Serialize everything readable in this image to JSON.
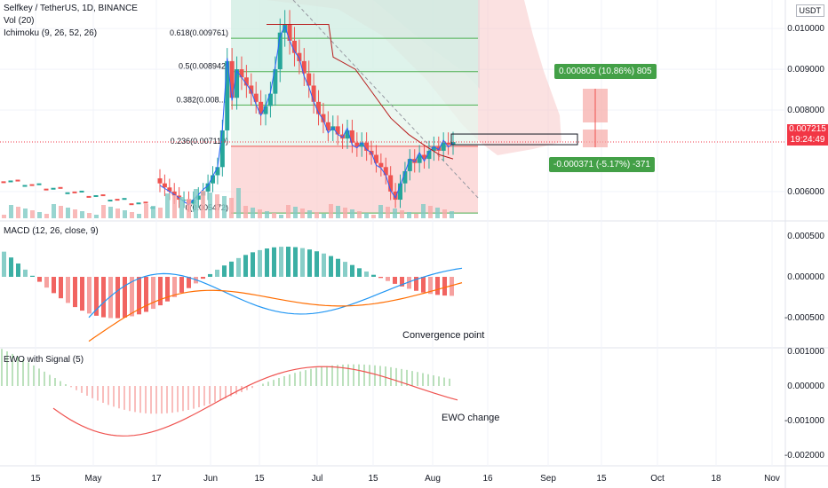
{
  "header": {
    "symbol": "Selfkey / TetherUS, 1D, BINANCE",
    "vol": "Vol (20)",
    "ichimoku": "Ichimoku (9, 26, 52, 26)",
    "macd": "MACD (12, 26, close, 9)",
    "ewo": "EWO with Signal (5)",
    "currency": "USDT"
  },
  "colors": {
    "up": "#26a69a",
    "down": "#ef5350",
    "price_line": "#f23645",
    "tenkan": "#2962ff",
    "kijun": "#b71c1c",
    "cloud": "#f8c9c9",
    "macd_line": "#2196f3",
    "signal_line": "#ff6d00",
    "ewo_pos": "#4caf50",
    "ewo_neg": "#ef5350",
    "long_target": "#43a047"
  },
  "price": {
    "current": "0.007215",
    "countdown": "19:24:49",
    "y_ticks": [
      "0.010000",
      "0.009000",
      "0.008000",
      "0.006000"
    ],
    "fib_levels": [
      {
        "label": "0.618(0.009761)",
        "value": 0.009761
      },
      {
        "label": "0.5(0.008942)",
        "value": 0.008942
      },
      {
        "label": "0.382(0.008...)",
        "value": 0.008123
      },
      {
        "label": "0.236(0.007110)",
        "value": 0.00711
      },
      {
        "label": "0(0.005472)",
        "value": 0.005472
      }
    ],
    "target_profit": "0.000805 (10.86%) 805",
    "stop_loss": "-0.000371 (-5.17%) -371"
  },
  "macd_axis": [
    "0.000500",
    "0.000000",
    "-0.000500"
  ],
  "ewo_axis": [
    "0.001000",
    "0.000000",
    "-0.001000",
    "-0.002000"
  ],
  "x_labels": [
    "15",
    "May",
    "17",
    "Jun",
    "15",
    "Jul",
    "15",
    "Aug",
    "16",
    "Sep",
    "15",
    "Oct",
    "18",
    "Nov"
  ],
  "annotations": {
    "macd_note": "Convergence point",
    "ewo_note": "EWO change"
  },
  "chart_data": {
    "type": "candlestick",
    "title": "Selfkey / TetherUS, 1D, BINANCE",
    "close": [
      0.0062,
      0.0061,
      0.006,
      0.0059,
      0.0058,
      0.0058,
      0.0057,
      0.0058,
      0.0059,
      0.006,
      0.0062,
      0.0064,
      0.0066,
      0.0075,
      0.0092,
      0.0083,
      0.009,
      0.0088,
      0.0086,
      0.0084,
      0.0082,
      0.0079,
      0.0081,
      0.0084,
      0.009,
      0.0099,
      0.0101,
      0.0097,
      0.0094,
      0.0092,
      0.0089,
      0.0086,
      0.0082,
      0.0079,
      0.0077,
      0.0075,
      0.0076,
      0.0074,
      0.0073,
      0.0075,
      0.0072,
      0.0071,
      0.0072,
      0.007,
      0.0069,
      0.0067,
      0.0066,
      0.0064,
      0.006,
      0.0058,
      0.0062,
      0.0065,
      0.0068,
      0.0067,
      0.0069,
      0.0068,
      0.007,
      0.0071,
      0.007,
      0.0072,
      0.00715,
      0.007215
    ],
    "price_range": [
      0.0053,
      0.0107
    ]
  }
}
